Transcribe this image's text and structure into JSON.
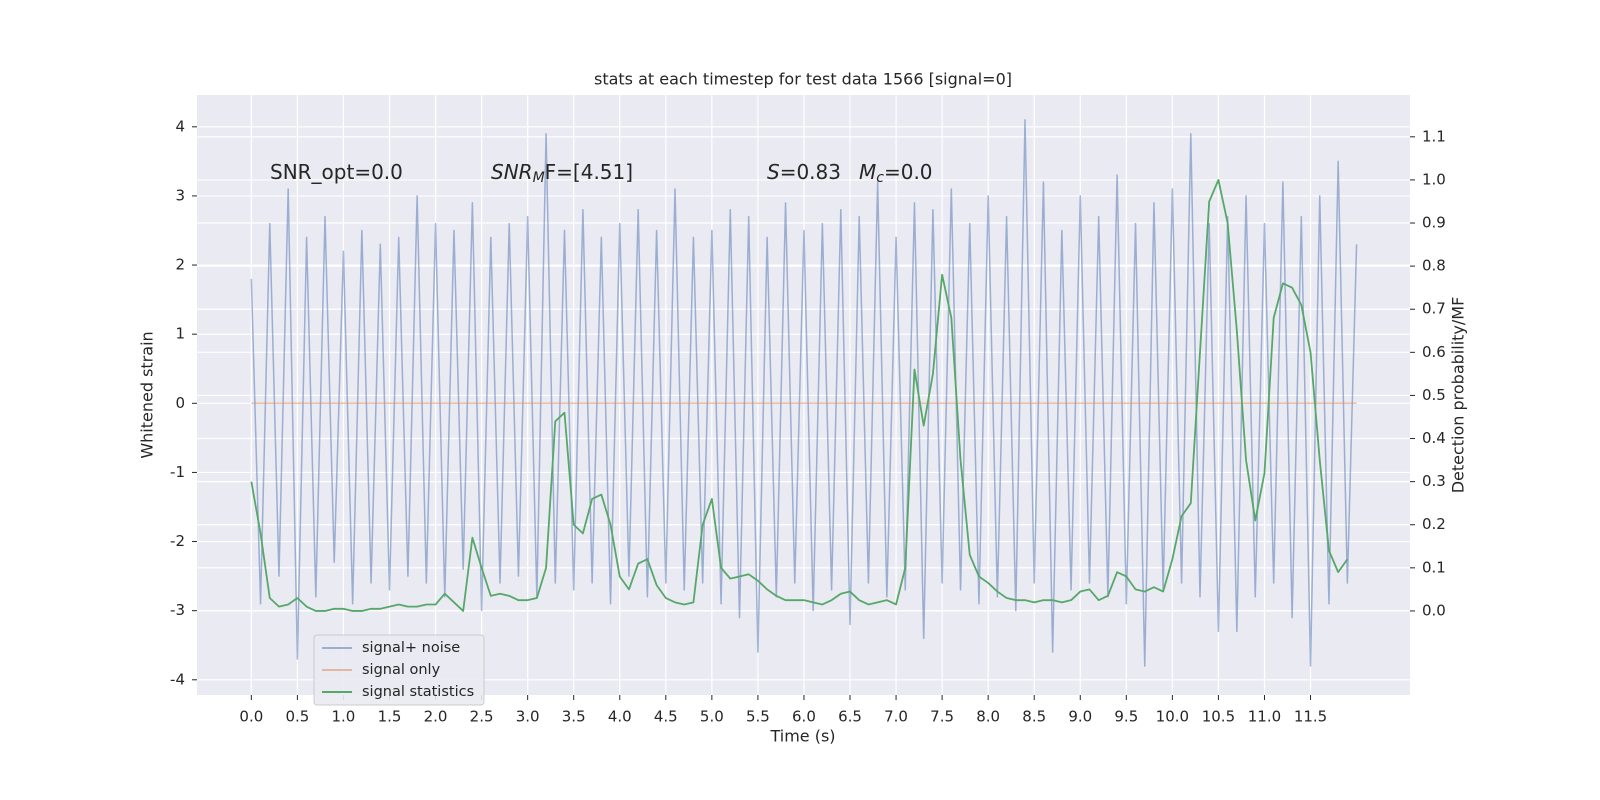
{
  "chart_data": {
    "type": "line",
    "title": "stats at each timestep for test data 1566 [signal=0]",
    "xlabel": "Time (s)",
    "ylabel": "Whitened strain",
    "y2label": "Detection probability/MF",
    "annotations": [
      {
        "text": "SNR_opt=0.0"
      },
      {
        "base": "SNR",
        "sub": "M",
        "rest": "F=[4.51]"
      },
      {
        "base": "S",
        "rest": "=0.83"
      },
      {
        "base": "M",
        "sub": "c",
        "rest": "=0.0"
      }
    ],
    "xlim": [
      -0.59,
      12.58
    ],
    "ylim": [
      -4.22,
      4.46
    ],
    "y2lim": [
      -0.195,
      1.197
    ],
    "xticks": [
      {
        "value": 0,
        "label": "0.0"
      },
      0.5,
      {
        "value": 1,
        "label": "1.0"
      },
      1.5,
      {
        "value": 2,
        "label": "2.0"
      },
      2.5,
      {
        "value": 3,
        "label": "3.0"
      },
      3.5,
      {
        "value": 4,
        "label": "4.0"
      },
      4.5,
      {
        "value": 5,
        "label": "5.0"
      },
      5.5,
      {
        "value": 6,
        "label": "6.0"
      },
      6.5,
      {
        "value": 7,
        "label": "7.0"
      },
      7.5,
      {
        "value": 8,
        "label": "8.0"
      },
      8.5,
      {
        "value": 9,
        "label": "9.0"
      },
      9.5,
      {
        "value": 10,
        "label": "10.0"
      },
      10.5,
      {
        "value": 11,
        "label": "11.0"
      },
      11.5
    ],
    "yticks": [
      -4,
      -3,
      -2,
      -1,
      0,
      1,
      2,
      3,
      4
    ],
    "y2ticks": [
      {
        "value": 0,
        "label": "0.0"
      },
      0.1,
      0.2,
      0.3,
      0.4,
      0.5,
      0.6,
      0.7,
      0.8,
      0.9,
      {
        "value": 1,
        "label": "1.0"
      },
      1.1
    ],
    "grid": true,
    "legend": "lower left",
    "series": [
      {
        "name": "signal+ noise",
        "color": "#4c72b0",
        "alpha": 0.5,
        "x": [
          0,
          0.1,
          0.2,
          0.3,
          0.4,
          0.5,
          0.6,
          0.7,
          0.8,
          0.9,
          1,
          1.1,
          1.2,
          1.3,
          1.4,
          1.5,
          1.6,
          1.7,
          1.8,
          1.9,
          2,
          2.1,
          2.2,
          2.3,
          2.4,
          2.5,
          2.6,
          2.7,
          2.8,
          2.9,
          3,
          3.1,
          3.2,
          3.3,
          3.4,
          3.5,
          3.6,
          3.7,
          3.8,
          3.9,
          4,
          4.1,
          4.2,
          4.3,
          4.4,
          4.5,
          4.6,
          4.7,
          4.8,
          4.9,
          5,
          5.1,
          5.2,
          5.3,
          5.4,
          5.5,
          5.6,
          5.7,
          5.8,
          5.9,
          6,
          6.1,
          6.2,
          6.3,
          6.4,
          6.5,
          6.6,
          6.7,
          6.8,
          6.9,
          7,
          7.1,
          7.2,
          7.3,
          7.4,
          7.5,
          7.6,
          7.7,
          7.8,
          7.9,
          8,
          8.1,
          8.2,
          8.3,
          8.4,
          8.5,
          8.6,
          8.7,
          8.8,
          8.9,
          9,
          9.1,
          9.2,
          9.3,
          9.4,
          9.5,
          9.6,
          9.7,
          9.8,
          9.9,
          10,
          10.1,
          10.2,
          10.3,
          10.4,
          10.5,
          10.6,
          10.7,
          10.8,
          10.9,
          11,
          11.1,
          11.2,
          11.3,
          11.4,
          11.5,
          11.6,
          11.7,
          11.8,
          11.9,
          12
        ],
        "values": [
          1.8,
          -2.9,
          2.6,
          -2.5,
          3.1,
          -3.7,
          2.4,
          -2.8,
          2.7,
          -2.3,
          2.2,
          -2.9,
          2.5,
          -2.6,
          2.3,
          -2.7,
          2.4,
          -2.5,
          3.0,
          -2.6,
          2.6,
          -2.8,
          2.5,
          -2.4,
          2.9,
          -3.0,
          2.4,
          -2.6,
          2.6,
          -2.5,
          2.7,
          -2.8,
          3.9,
          -2.6,
          2.5,
          -2.7,
          2.8,
          -2.6,
          2.4,
          -2.9,
          2.6,
          -2.5,
          2.8,
          -2.8,
          2.5,
          -2.6,
          3.1,
          -2.7,
          2.4,
          -2.6,
          2.5,
          -2.9,
          2.8,
          -3.1,
          2.7,
          -3.6,
          2.4,
          -2.8,
          2.9,
          -2.6,
          2.5,
          -3.0,
          2.6,
          -2.7,
          2.8,
          -3.2,
          2.7,
          -2.6,
          3.2,
          -2.8,
          2.4,
          -2.7,
          2.9,
          -3.4,
          2.8,
          -2.6,
          3.1,
          -2.7,
          2.6,
          -2.9,
          3.0,
          -2.8,
          2.7,
          -3.0,
          4.1,
          -2.6,
          3.2,
          -3.6,
          2.5,
          -2.7,
          3.0,
          -2.6,
          2.7,
          -2.8,
          3.3,
          -2.9,
          2.6,
          -3.8,
          2.9,
          -2.7,
          3.1,
          -2.6,
          3.9,
          -2.8,
          2.6,
          -3.3,
          2.7,
          -3.3,
          3.0,
          -2.8,
          2.6,
          -2.6,
          3.2,
          -3.1,
          2.7,
          -3.8,
          3.0,
          -2.9,
          3.5,
          -2.6,
          2.3
        ]
      },
      {
        "name": "signal only",
        "color": "#dd8452",
        "alpha": 0.5,
        "x": [
          0,
          12
        ],
        "values": [
          0,
          0
        ]
      },
      {
        "name": "signal statistics",
        "color": "#55a868",
        "alpha": 1,
        "axis": "y2",
        "x": [
          0,
          0.1,
          0.2,
          0.3,
          0.4,
          0.5,
          0.6,
          0.7,
          0.8,
          0.9,
          1,
          1.1,
          1.2,
          1.3,
          1.4,
          1.5,
          1.6,
          1.7,
          1.8,
          1.9,
          2,
          2.1,
          2.2,
          2.3,
          2.4,
          2.5,
          2.6,
          2.7,
          2.8,
          2.9,
          3,
          3.1,
          3.2,
          3.3,
          3.4,
          3.5,
          3.6,
          3.7,
          3.8,
          3.9,
          4,
          4.1,
          4.2,
          4.3,
          4.4,
          4.5,
          4.6,
          4.7,
          4.8,
          4.9,
          5,
          5.1,
          5.2,
          5.3,
          5.4,
          5.5,
          5.6,
          5.7,
          5.8,
          5.9,
          6,
          6.1,
          6.2,
          6.3,
          6.4,
          6.5,
          6.6,
          6.7,
          6.8,
          6.9,
          7,
          7.1,
          7.2,
          7.3,
          7.4,
          7.5,
          7.6,
          7.7,
          7.8,
          7.9,
          8,
          8.1,
          8.2,
          8.3,
          8.4,
          8.5,
          8.6,
          8.7,
          8.8,
          8.9,
          9,
          9.1,
          9.2,
          9.3,
          9.4,
          9.5,
          9.6,
          9.7,
          9.8,
          9.9,
          10,
          10.1,
          10.2,
          10.3,
          10.4,
          10.5,
          10.6,
          10.7,
          10.8,
          10.9,
          11,
          11.1,
          11.2,
          11.3,
          11.4,
          11.5,
          11.6,
          11.7,
          11.8,
          11.9
        ],
        "values": [
          0.3,
          0.18,
          0.03,
          0.01,
          0.015,
          0.03,
          0.01,
          0.0,
          0.0,
          0.005,
          0.005,
          0.0,
          0.0,
          0.005,
          0.005,
          0.01,
          0.015,
          0.01,
          0.01,
          0.015,
          0.015,
          0.04,
          0.02,
          0.0,
          0.17,
          0.1,
          0.035,
          0.04,
          0.035,
          0.025,
          0.025,
          0.03,
          0.1,
          0.44,
          0.46,
          0.2,
          0.18,
          0.26,
          0.27,
          0.2,
          0.08,
          0.05,
          0.11,
          0.12,
          0.06,
          0.03,
          0.02,
          0.015,
          0.02,
          0.2,
          0.26,
          0.1,
          0.075,
          0.08,
          0.085,
          0.07,
          0.05,
          0.035,
          0.025,
          0.025,
          0.025,
          0.02,
          0.015,
          0.025,
          0.04,
          0.045,
          0.025,
          0.015,
          0.02,
          0.025,
          0.015,
          0.1,
          0.56,
          0.43,
          0.55,
          0.78,
          0.68,
          0.35,
          0.13,
          0.08,
          0.065,
          0.045,
          0.03,
          0.025,
          0.025,
          0.02,
          0.025,
          0.025,
          0.02,
          0.025,
          0.045,
          0.05,
          0.025,
          0.035,
          0.09,
          0.08,
          0.05,
          0.045,
          0.055,
          0.045,
          0.12,
          0.22,
          0.25,
          0.6,
          0.95,
          1.0,
          0.9,
          0.65,
          0.35,
          0.21,
          0.32,
          0.68,
          0.76,
          0.75,
          0.71,
          0.6,
          0.35,
          0.14,
          0.09,
          0.12
        ]
      }
    ]
  }
}
